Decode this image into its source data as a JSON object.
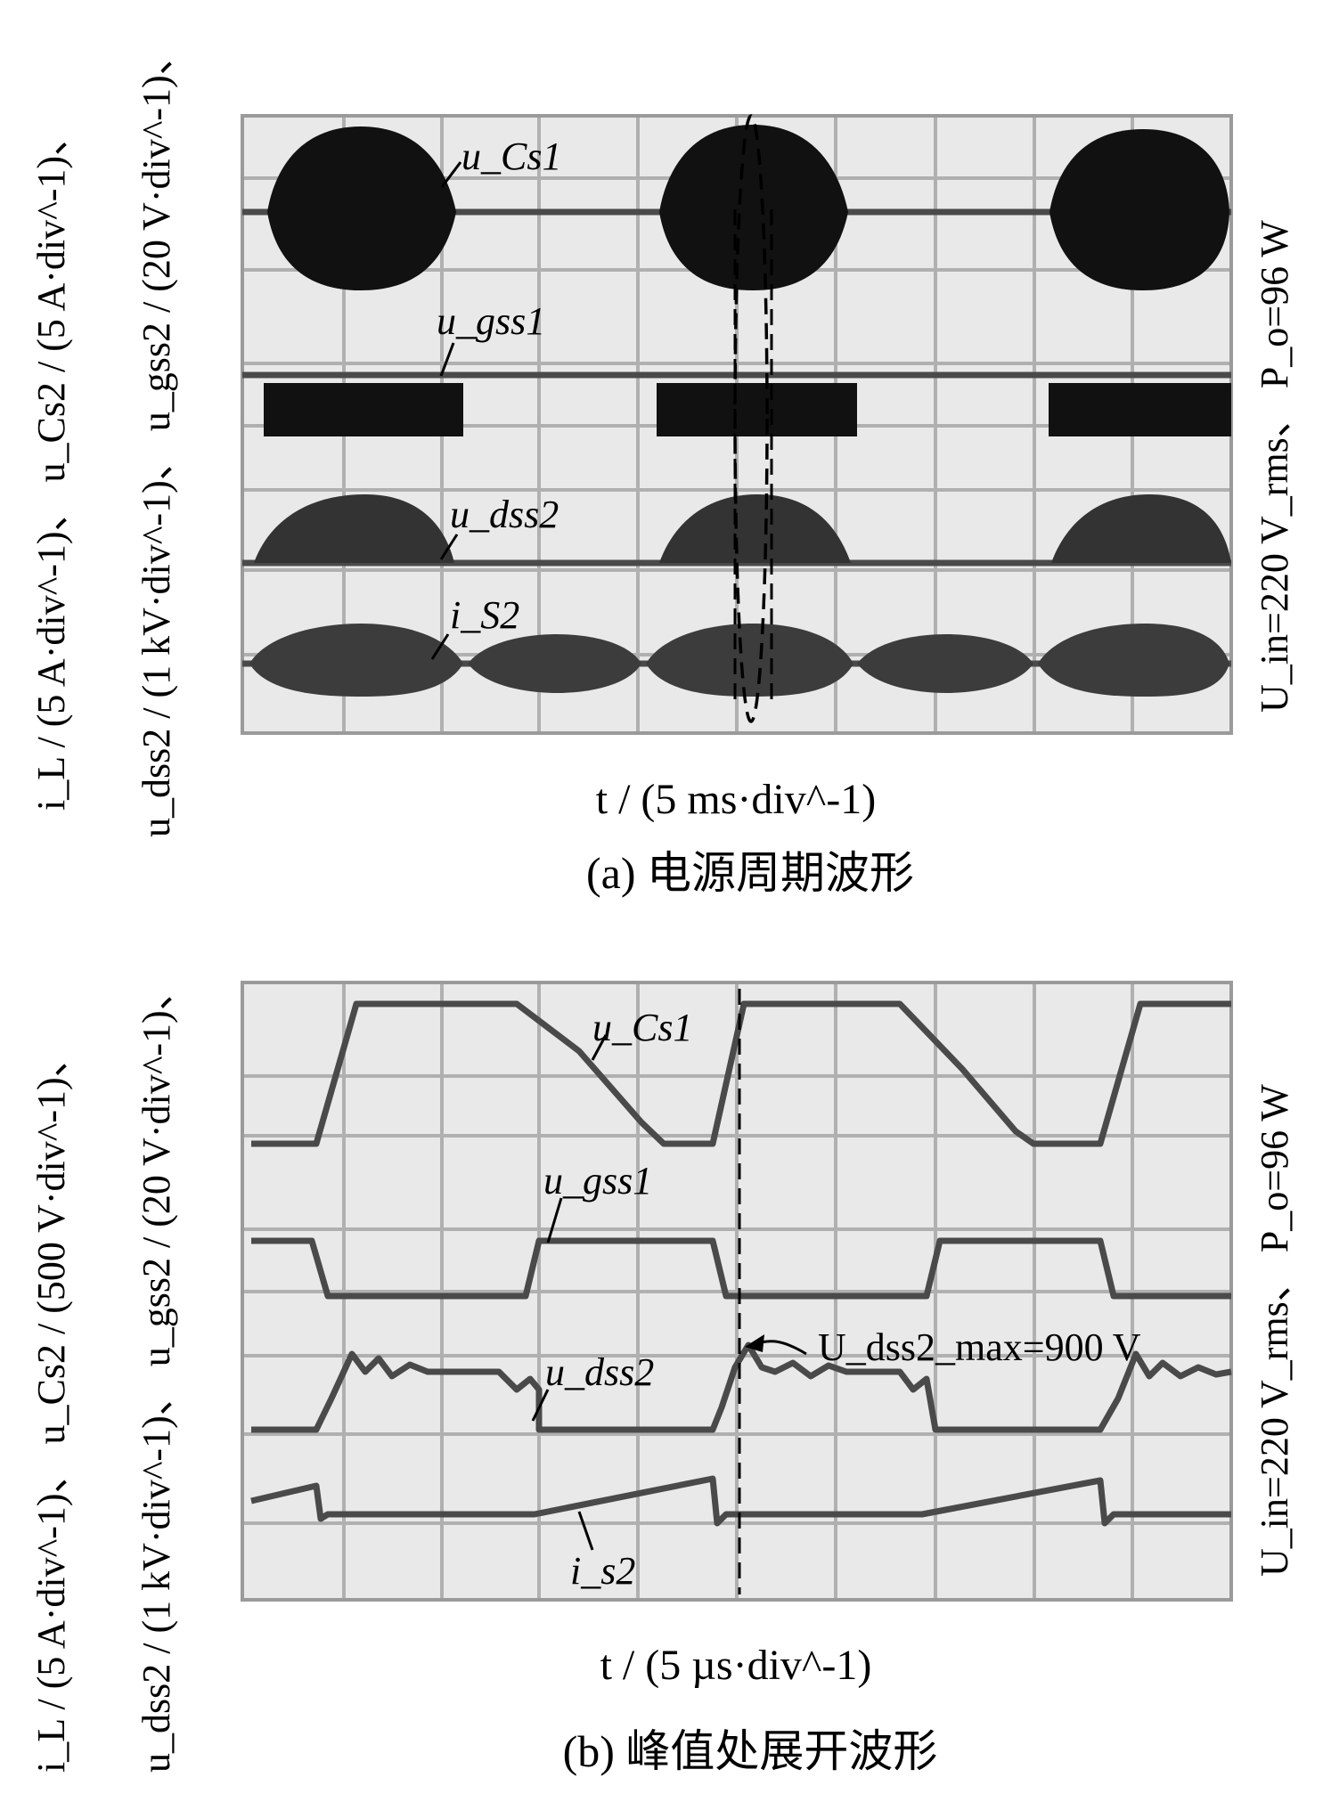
{
  "panel_a": {
    "y_axis_label_line1": "i_L / (5 A·div^-1)、 u_Cs2 / (5 A·div^-1)、",
    "y_axis_label_line2": "u_dss2 / (1 kV·div^-1)、 u_gss2 / (20 V·div^-1)、",
    "x_axis_label": "t / (5 ms·div^-1)",
    "right_condition": "U_in=220 V_rms、 P_o=96 W",
    "caption": "(a)  电源周期波形",
    "trace_labels": [
      "u_Cs1",
      "u_gss1",
      "u_dss2",
      "i_S2"
    ]
  },
  "panel_b": {
    "y_axis_label_line1": "i_L / (5 A·div^-1)、 u_Cs2 / (500 V·div^-1)、",
    "y_axis_label_line2": "u_dss2 / (1 kV·div^-1)、 u_gss2 / (20 V·div^-1)、",
    "x_axis_label": "t / (5 µs·div^-1)",
    "right_condition": "U_in=220 V_rms、 P_o=96 W",
    "caption": "(b)  峰值处展开波形",
    "trace_labels": [
      "u_Cs1",
      "u_gss1",
      "u_dss2",
      "i_s2"
    ],
    "annotation": "U_dss2_max=900 V"
  }
}
